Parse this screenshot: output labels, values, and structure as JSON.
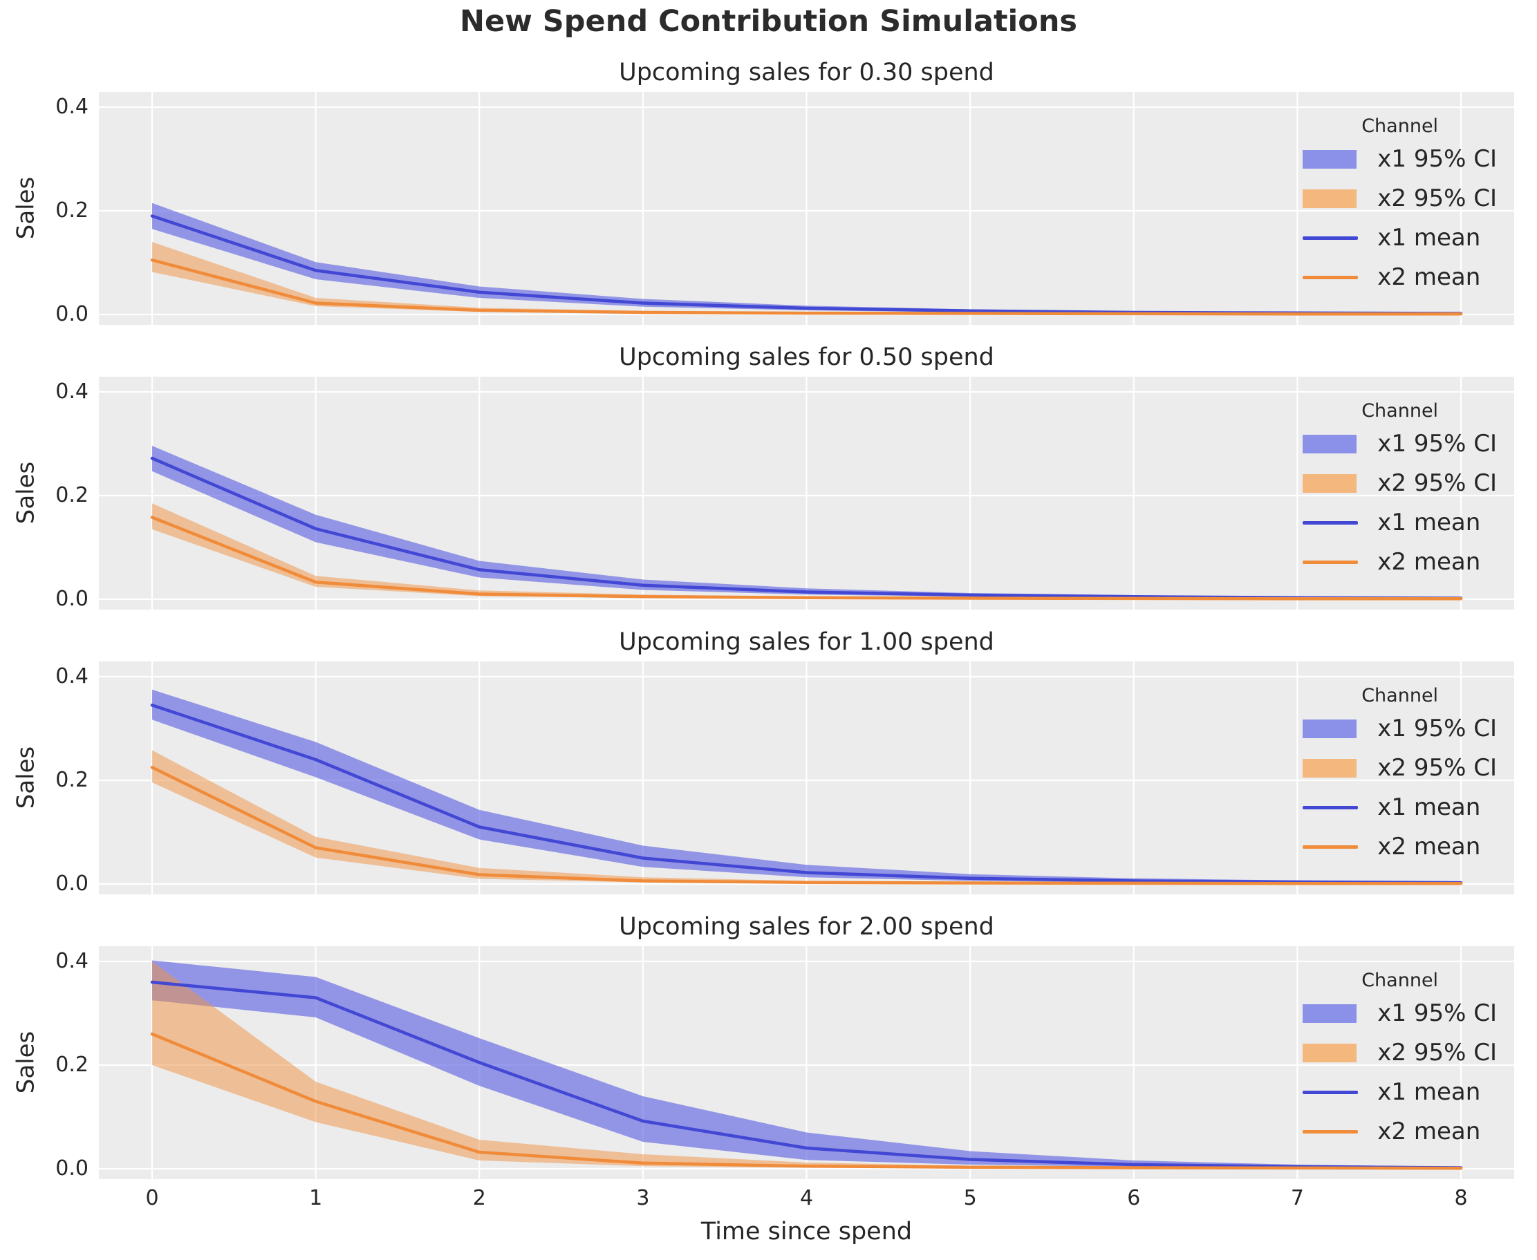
{
  "figure": {
    "title": "New Spend Contribution Simulations",
    "xlabel": "Time since spend",
    "ylabel": "Sales",
    "x_ticks": [
      "0",
      "1",
      "2",
      "3",
      "4",
      "5",
      "6",
      "7",
      "8"
    ],
    "y_ticks": [
      "0.0",
      "0.2",
      "0.4"
    ],
    "legend": {
      "title": "Channel",
      "entries": [
        {
          "label": "x1 95% CI",
          "swatch": "patch",
          "color_key": "legend_patch_x1"
        },
        {
          "label": "x2 95% CI",
          "swatch": "patch",
          "color_key": "legend_patch_x2"
        },
        {
          "label": "x1 mean",
          "swatch": "line",
          "color_key": "x1_line"
        },
        {
          "label": "x2 mean",
          "swatch": "line",
          "color_key": "x2_line"
        }
      ]
    },
    "colors": {
      "x1_line": "#4247d4",
      "x1_band": "#5a60e0",
      "x2_line": "#f08b3a",
      "x2_band": "#f09242",
      "legend_patch_x1": "#8b90e8",
      "legend_patch_x2": "#f4b87f",
      "axes_bg": "#ececec",
      "grid": "#ffffff",
      "text": "#262626"
    }
  },
  "chart_data": [
    {
      "type": "line",
      "title": "Upcoming sales for 0.30 spend",
      "spend": 0.3,
      "xlabel": "Time since spend",
      "ylabel": "Sales",
      "x": [
        0,
        1,
        2,
        3,
        4,
        5,
        6,
        7,
        8
      ],
      "ylim": [
        -0.011,
        0.437
      ],
      "grid": true,
      "legend_position": "upper right",
      "series": [
        {
          "name": "x1 mean",
          "values": [
            0.19,
            0.085,
            0.043,
            0.022,
            0.012,
            0.007,
            0.004,
            0.003,
            0.002
          ]
        },
        {
          "name": "x1 95% CI lower",
          "values": [
            0.165,
            0.068,
            0.032,
            0.015,
            0.008,
            0.004,
            0.002,
            0.0015,
            0.001
          ]
        },
        {
          "name": "x1 95% CI upper",
          "values": [
            0.215,
            0.101,
            0.054,
            0.03,
            0.017,
            0.01,
            0.006,
            0.0045,
            0.003
          ]
        },
        {
          "name": "x2 mean",
          "values": [
            0.105,
            0.022,
            0.008,
            0.004,
            0.0025,
            0.002,
            0.0015,
            0.001,
            0.001
          ]
        },
        {
          "name": "x2 95% CI lower",
          "values": [
            0.082,
            0.016,
            0.005,
            0.002,
            0.001,
            0.0008,
            0.0005,
            0.0005,
            0.0004
          ]
        },
        {
          "name": "x2 95% CI upper",
          "values": [
            0.14,
            0.032,
            0.013,
            0.007,
            0.0045,
            0.003,
            0.0025,
            0.002,
            0.0016
          ]
        }
      ]
    },
    {
      "type": "line",
      "title": "Upcoming sales for 0.50 spend",
      "spend": 0.5,
      "xlabel": "Time since spend",
      "ylabel": "Sales",
      "x": [
        0,
        1,
        2,
        3,
        4,
        5,
        6,
        7,
        8
      ],
      "ylim": [
        -0.011,
        0.437
      ],
      "grid": true,
      "legend_position": "upper right",
      "series": [
        {
          "name": "x1 mean",
          "values": [
            0.272,
            0.136,
            0.057,
            0.027,
            0.014,
            0.008,
            0.005,
            0.003,
            0.002
          ]
        },
        {
          "name": "x1 95% CI lower",
          "values": [
            0.247,
            0.11,
            0.042,
            0.018,
            0.009,
            0.005,
            0.003,
            0.002,
            0.001
          ]
        },
        {
          "name": "x1 95% CI upper",
          "values": [
            0.296,
            0.163,
            0.074,
            0.038,
            0.021,
            0.012,
            0.008,
            0.005,
            0.0035
          ]
        },
        {
          "name": "x2 mean",
          "values": [
            0.158,
            0.033,
            0.01,
            0.005,
            0.003,
            0.002,
            0.0015,
            0.001,
            0.001
          ]
        },
        {
          "name": "x2 95% CI lower",
          "values": [
            0.135,
            0.024,
            0.006,
            0.0025,
            0.0013,
            0.0008,
            0.0006,
            0.0005,
            0.0004
          ]
        },
        {
          "name": "x2 95% CI upper",
          "values": [
            0.185,
            0.045,
            0.017,
            0.009,
            0.005,
            0.0035,
            0.0025,
            0.002,
            0.0016
          ]
        }
      ]
    },
    {
      "type": "line",
      "title": "Upcoming sales for 1.00 spend",
      "spend": 1.0,
      "xlabel": "Time since spend",
      "ylabel": "Sales",
      "x": [
        0,
        1,
        2,
        3,
        4,
        5,
        6,
        7,
        8
      ],
      "ylim": [
        -0.011,
        0.437
      ],
      "grid": true,
      "legend_position": "upper right",
      "series": [
        {
          "name": "x1 mean",
          "values": [
            0.345,
            0.24,
            0.11,
            0.05,
            0.022,
            0.011,
            0.006,
            0.004,
            0.0025
          ]
        },
        {
          "name": "x1 95% CI lower",
          "values": [
            0.317,
            0.206,
            0.086,
            0.033,
            0.013,
            0.006,
            0.0035,
            0.002,
            0.0015
          ]
        },
        {
          "name": "x1 95% CI upper",
          "values": [
            0.375,
            0.274,
            0.143,
            0.074,
            0.037,
            0.019,
            0.011,
            0.007,
            0.0045
          ]
        },
        {
          "name": "x2 mean",
          "values": [
            0.225,
            0.07,
            0.018,
            0.006,
            0.003,
            0.002,
            0.0015,
            0.001,
            0.001
          ]
        },
        {
          "name": "x2 95% CI lower",
          "values": [
            0.196,
            0.051,
            0.01,
            0.003,
            0.0015,
            0.001,
            0.0007,
            0.0005,
            0.0004
          ]
        },
        {
          "name": "x2 95% CI upper",
          "values": [
            0.258,
            0.091,
            0.031,
            0.013,
            0.006,
            0.004,
            0.003,
            0.002,
            0.0016
          ]
        }
      ]
    },
    {
      "type": "line",
      "title": "Upcoming sales for 2.00 spend",
      "spend": 2.0,
      "xlabel": "Time since spend",
      "ylabel": "Sales",
      "x": [
        0,
        1,
        2,
        3,
        4,
        5,
        6,
        7,
        8
      ],
      "ylim": [
        -0.011,
        0.437
      ],
      "grid": true,
      "legend_position": "upper right",
      "series": [
        {
          "name": "x1 mean",
          "values": [
            0.36,
            0.33,
            0.205,
            0.092,
            0.04,
            0.018,
            0.008,
            0.004,
            0.002
          ]
        },
        {
          "name": "x1 95% CI lower",
          "values": [
            0.325,
            0.292,
            0.16,
            0.052,
            0.017,
            0.008,
            0.004,
            0.002,
            0.001
          ]
        },
        {
          "name": "x1 95% CI upper",
          "values": [
            0.402,
            0.37,
            0.252,
            0.14,
            0.07,
            0.034,
            0.016,
            0.008,
            0.004
          ]
        },
        {
          "name": "x2 mean",
          "values": [
            0.26,
            0.13,
            0.032,
            0.011,
            0.005,
            0.003,
            0.002,
            0.0015,
            0.001
          ]
        },
        {
          "name": "x2 95% CI lower",
          "values": [
            0.2,
            0.09,
            0.016,
            0.005,
            0.002,
            0.001,
            0.0008,
            0.0006,
            0.0005
          ]
        },
        {
          "name": "x2 95% CI upper",
          "values": [
            0.4,
            0.168,
            0.056,
            0.028,
            0.012,
            0.006,
            0.004,
            0.003,
            0.002
          ]
        }
      ]
    }
  ]
}
